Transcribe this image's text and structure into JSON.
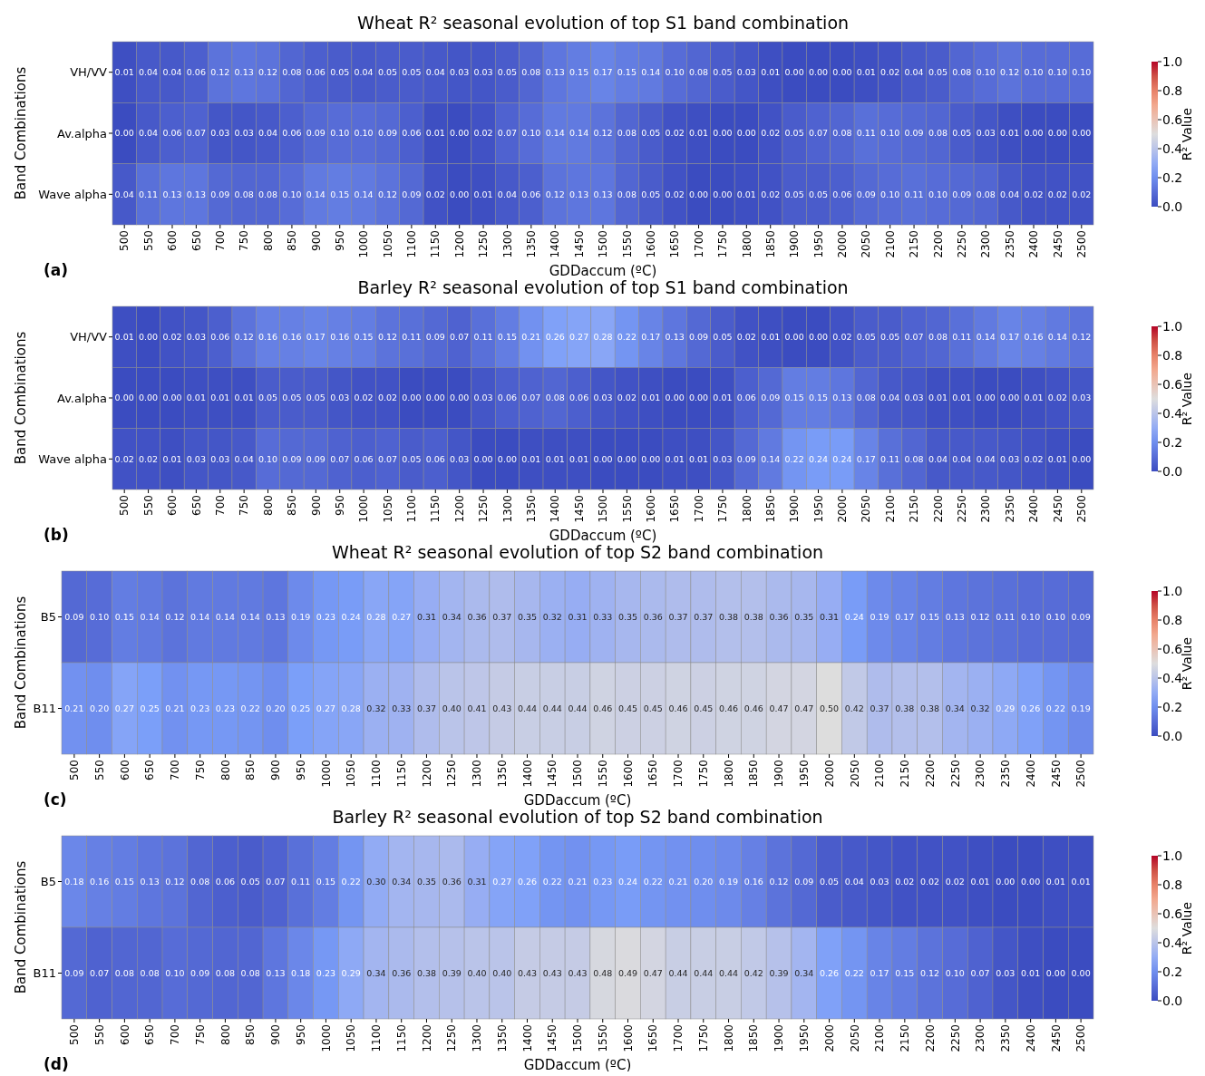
{
  "chart_data": [
    {
      "type": "heatmap",
      "title": "Wheat R² seasonal evolution of top S1 band combination",
      "xlabel": "GDDaccum (ºC)",
      "ylabel": "Band Combinations",
      "clabel": "R² Value",
      "annotations": [
        "(a)"
      ],
      "categories": [
        "500",
        "550",
        "600",
        "650",
        "700",
        "750",
        "800",
        "850",
        "900",
        "950",
        "1000",
        "1050",
        "1100",
        "1150",
        "1200",
        "1250",
        "1300",
        "1350",
        "1400",
        "1450",
        "1500",
        "1550",
        "1600",
        "1650",
        "1700",
        "1750",
        "1800",
        "1850",
        "1900",
        "1950",
        "2000",
        "2050",
        "2100",
        "2150",
        "2200",
        "2250",
        "2300",
        "2350",
        "2400",
        "2450",
        "2500"
      ],
      "y_categories": [
        "VH/VV",
        "Av.alpha",
        "Wave alpha"
      ],
      "cells": [
        [
          0.01,
          0.04,
          0.04,
          0.06,
          0.12,
          0.13,
          0.12,
          0.08,
          0.06,
          0.05,
          0.04,
          0.05,
          0.05,
          0.04,
          0.03,
          0.03,
          0.05,
          0.08,
          0.13,
          0.15,
          0.17,
          0.15,
          0.14,
          0.1,
          0.08,
          0.05,
          0.03,
          0.01,
          0.0,
          0.0,
          0.0,
          0.01,
          0.02,
          0.04,
          0.05,
          0.08,
          0.1,
          0.12,
          0.1,
          0.1,
          0.1
        ],
        [
          0.0,
          0.04,
          0.06,
          0.07,
          0.03,
          0.03,
          0.04,
          0.06,
          0.09,
          0.1,
          0.1,
          0.09,
          0.06,
          0.01,
          0.0,
          0.02,
          0.07,
          0.1,
          0.14,
          0.14,
          0.12,
          0.08,
          0.05,
          0.02,
          0.01,
          0.0,
          0.0,
          0.02,
          0.05,
          0.07,
          0.08,
          0.11,
          0.1,
          0.09,
          0.08,
          0.05,
          0.03,
          0.01,
          0.0,
          0.0,
          0.0
        ],
        [
          0.04,
          0.11,
          0.13,
          0.13,
          0.09,
          0.08,
          0.08,
          0.1,
          0.14,
          0.15,
          0.14,
          0.12,
          0.09,
          0.02,
          0.0,
          0.01,
          0.04,
          0.06,
          0.12,
          0.13,
          0.13,
          0.08,
          0.05,
          0.02,
          0.0,
          0.0,
          0.01,
          0.02,
          0.05,
          0.05,
          0.06,
          0.09,
          0.1,
          0.11,
          0.1,
          0.09,
          0.08,
          0.04,
          0.02,
          0.02,
          0.02
        ]
      ],
      "cell_labels": [
        [
          "0.01",
          "0.04",
          "0.04",
          "0.06",
          "0.12",
          "0.13",
          "0.12",
          "0.08",
          "0.06",
          "0.05",
          "0.04",
          "0.05",
          "0.05",
          "0.04",
          "0.03",
          "0.03",
          "0.05",
          "0.08",
          "0.13",
          "0.15",
          "0.17",
          "0.15",
          "0.14",
          "0.10",
          "0.08",
          "0.05",
          "0.03",
          "0.01",
          "0.00",
          "0.00",
          "0.00",
          "0.01",
          "0.02",
          "0.04",
          "0.05",
          "0.08",
          "0.10",
          "0.12",
          "0.10",
          "0.10",
          "0.10"
        ],
        [
          "0.00",
          "0.04",
          "0.06",
          "0.07",
          "0.03",
          "0.03",
          "0.04",
          "0.06",
          "0.09",
          "0.10",
          "0.10",
          "0.09",
          "0.06",
          "0.01",
          "0.00",
          "0.02",
          "0.07",
          "0.10",
          "0.14",
          "0.14",
          "0.12",
          "0.08",
          "0.05",
          "0.02",
          "0.01",
          "0.00",
          "0.00",
          "0.02",
          "0.05",
          "0.07",
          "0.08",
          "0.11",
          "0.10",
          "0.09",
          "0.08",
          "0.05",
          "0.03",
          "0.01",
          "0.00",
          "0.00",
          "0.00"
        ],
        [
          "0.04",
          "0.11",
          "0.13",
          "0.13",
          "0.09",
          "0.08",
          "0.08",
          "0.10",
          "0.14",
          "0.15",
          "0.14",
          "0.12",
          "0.09",
          "0.02",
          "0.00",
          "0.01",
          "0.04",
          "0.06",
          "0.12",
          "0.13",
          "0.13",
          "0.08",
          "0.05",
          "0.02",
          "0.00",
          "0.00",
          "0.01",
          "0.02",
          "0.05",
          "0.05",
          "0.06",
          "0.09",
          "0.10",
          "0.11",
          "0.10",
          "0.09",
          "0.08",
          "0.04",
          "0.02",
          "0.02",
          "0.02"
        ]
      ],
      "clim": [
        0,
        1
      ],
      "cticks": [
        {
          "value": 0,
          "label": "0.0"
        },
        {
          "value": 0.2,
          "label": "0.2"
        },
        {
          "value": 0.4,
          "label": "0.4"
        },
        {
          "value": 0.6,
          "label": "0.6"
        },
        {
          "value": 0.8,
          "label": "0.8"
        },
        {
          "value": 1,
          "label": "1.0"
        }
      ]
    },
    {
      "type": "heatmap",
      "title": "Barley R² seasonal evolution of top S1 band combination",
      "xlabel": "GDDaccum (ºC)",
      "ylabel": "Band Combinations",
      "clabel": "R² Value",
      "annotations": [
        "(b)"
      ],
      "categories": [
        "500",
        "550",
        "600",
        "650",
        "700",
        "750",
        "800",
        "850",
        "900",
        "950",
        "1000",
        "1050",
        "1100",
        "1150",
        "1200",
        "1250",
        "1300",
        "1350",
        "1400",
        "1450",
        "1500",
        "1550",
        "1600",
        "1650",
        "1700",
        "1750",
        "1800",
        "1850",
        "1900",
        "1950",
        "2000",
        "2050",
        "2100",
        "2150",
        "2200",
        "2250",
        "2300",
        "2350",
        "2400",
        "2450",
        "2500"
      ],
      "y_categories": [
        "VH/VV",
        "Av.alpha",
        "Wave alpha"
      ],
      "cells": [
        [
          0.01,
          0.0,
          0.02,
          0.03,
          0.06,
          0.12,
          0.16,
          0.16,
          0.17,
          0.16,
          0.15,
          0.12,
          0.11,
          0.09,
          0.07,
          0.11,
          0.15,
          0.21,
          0.26,
          0.27,
          0.28,
          0.22,
          0.17,
          0.13,
          0.09,
          0.05,
          0.02,
          0.01,
          0.0,
          0.0,
          0.02,
          0.05,
          0.05,
          0.07,
          0.08,
          0.11,
          0.14,
          0.17,
          0.16,
          0.14,
          0.12
        ],
        [
          0.0,
          0.0,
          0.0,
          0.01,
          0.01,
          0.01,
          0.05,
          0.05,
          0.05,
          0.03,
          0.02,
          0.02,
          0.0,
          0.0,
          0.0,
          0.03,
          0.06,
          0.07,
          0.08,
          0.06,
          0.03,
          0.02,
          0.01,
          0.0,
          0.0,
          0.01,
          0.06,
          0.09,
          0.15,
          0.15,
          0.13,
          0.08,
          0.04,
          0.03,
          0.01,
          0.01,
          0.0,
          0.0,
          0.01,
          0.02,
          0.03
        ],
        [
          0.02,
          0.02,
          0.01,
          0.03,
          0.03,
          0.04,
          0.1,
          0.09,
          0.09,
          0.07,
          0.06,
          0.07,
          0.05,
          0.06,
          0.03,
          0.0,
          0.0,
          0.01,
          0.01,
          0.01,
          0.0,
          0.0,
          0.0,
          0.01,
          0.01,
          0.03,
          0.09,
          0.14,
          0.22,
          0.24,
          0.24,
          0.17,
          0.11,
          0.08,
          0.04,
          0.04,
          0.04,
          0.03,
          0.02,
          0.01,
          0.0
        ]
      ],
      "cell_labels": [
        [
          "0.01",
          "0.00",
          "0.02",
          "0.03",
          "0.06",
          "0.12",
          "0.16",
          "0.16",
          "0.17",
          "0.16",
          "0.15",
          "0.12",
          "0.11",
          "0.09",
          "0.07",
          "0.11",
          "0.15",
          "0.21",
          "0.26",
          "0.27",
          "0.28",
          "0.22",
          "0.17",
          "0.13",
          "0.09",
          "0.05",
          "0.02",
          "0.01",
          "0.00",
          "0.00",
          "0.02",
          "0.05",
          "0.05",
          "0.07",
          "0.08",
          "0.11",
          "0.14",
          "0.17",
          "0.16",
          "0.14",
          "0.12"
        ],
        [
          "0.00",
          "0.00",
          "0.00",
          "0.01",
          "0.01",
          "0.01",
          "0.05",
          "0.05",
          "0.05",
          "0.03",
          "0.02",
          "0.02",
          "0.00",
          "0.00",
          "0.00",
          "0.03",
          "0.06",
          "0.07",
          "0.08",
          "0.06",
          "0.03",
          "0.02",
          "0.01",
          "0.00",
          "0.00",
          "0.01",
          "0.06",
          "0.09",
          "0.15",
          "0.15",
          "0.13",
          "0.08",
          "0.04",
          "0.03",
          "0.01",
          "0.01",
          "0.00",
          "0.00",
          "0.01",
          "0.02",
          "0.03"
        ],
        [
          "0.02",
          "0.02",
          "0.01",
          "0.03",
          "0.03",
          "0.04",
          "0.10",
          "0.09",
          "0.09",
          "0.07",
          "0.06",
          "0.07",
          "0.05",
          "0.06",
          "0.03",
          "0.00",
          "0.00",
          "0.01",
          "0.01",
          "0.01",
          "0.00",
          "0.00",
          "0.00",
          "0.01",
          "0.01",
          "0.03",
          "0.09",
          "0.14",
          "0.22",
          "0.24",
          "0.24",
          "0.17",
          "0.11",
          "0.08",
          "0.04",
          "0.04",
          "0.04",
          "0.03",
          "0.02",
          "0.01",
          "0.00"
        ]
      ],
      "clim": [
        0,
        1
      ],
      "cticks": [
        {
          "value": 0,
          "label": "0.0"
        },
        {
          "value": 0.2,
          "label": "0.2"
        },
        {
          "value": 0.4,
          "label": "0.4"
        },
        {
          "value": 0.6,
          "label": "0.6"
        },
        {
          "value": 0.8,
          "label": "0.8"
        },
        {
          "value": 1,
          "label": "1.0"
        }
      ]
    },
    {
      "type": "heatmap",
      "title": "Wheat R² seasonal evolution of top S2 band combination",
      "xlabel": "GDDaccum (ºC)",
      "ylabel": "Band Combinations",
      "clabel": "R² Value",
      "annotations": [
        "(c)"
      ],
      "categories": [
        "500",
        "550",
        "600",
        "650",
        "700",
        "750",
        "800",
        "850",
        "900",
        "950",
        "1000",
        "1050",
        "1100",
        "1150",
        "1200",
        "1250",
        "1300",
        "1350",
        "1400",
        "1450",
        "1500",
        "1550",
        "1600",
        "1650",
        "1700",
        "1750",
        "1800",
        "1850",
        "1900",
        "1950",
        "2000",
        "2050",
        "2100",
        "2150",
        "2200",
        "2250",
        "2300",
        "2350",
        "2400",
        "2450",
        "2500"
      ],
      "y_categories": [
        "B5",
        "B11"
      ],
      "cells": [
        [
          0.09,
          0.1,
          0.15,
          0.14,
          0.12,
          0.14,
          0.14,
          0.14,
          0.13,
          0.19,
          0.23,
          0.24,
          0.28,
          0.27,
          0.31,
          0.34,
          0.36,
          0.37,
          0.35,
          0.32,
          0.31,
          0.33,
          0.35,
          0.36,
          0.37,
          0.37,
          0.38,
          0.38,
          0.36,
          0.35,
          0.31,
          0.24,
          0.19,
          0.17,
          0.15,
          0.13,
          0.12,
          0.11,
          0.1,
          0.1,
          0.09
        ],
        [
          0.21,
          0.2,
          0.27,
          0.25,
          0.21,
          0.23,
          0.23,
          0.22,
          0.2,
          0.25,
          0.27,
          0.28,
          0.32,
          0.33,
          0.37,
          0.4,
          0.41,
          0.43,
          0.44,
          0.44,
          0.44,
          0.46,
          0.45,
          0.45,
          0.46,
          0.45,
          0.46,
          0.46,
          0.47,
          0.47,
          0.5,
          0.42,
          0.37,
          0.38,
          0.38,
          0.34,
          0.32,
          0.29,
          0.26,
          0.22,
          0.19
        ]
      ],
      "cell_labels": [
        [
          "0.09",
          "0.10",
          "0.15",
          "0.14",
          "0.12",
          "0.14",
          "0.14",
          "0.14",
          "0.13",
          "0.19",
          "0.23",
          "0.24",
          "0.28",
          "0.27",
          "0.31",
          "0.34",
          "0.36",
          "0.37",
          "0.35",
          "0.32",
          "0.31",
          "0.33",
          "0.35",
          "0.36",
          "0.37",
          "0.37",
          "0.38",
          "0.38",
          "0.36",
          "0.35",
          "0.31",
          "0.24",
          "0.19",
          "0.17",
          "0.15",
          "0.13",
          "0.12",
          "0.11",
          "0.10",
          "0.10",
          "0.09"
        ],
        [
          "0.21",
          "0.20",
          "0.27",
          "0.25",
          "0.21",
          "0.23",
          "0.23",
          "0.22",
          "0.20",
          "0.25",
          "0.27",
          "0.28",
          "0.32",
          "0.33",
          "0.37",
          "0.40",
          "0.41",
          "0.43",
          "0.44",
          "0.44",
          "0.44",
          "0.46",
          "0.45",
          "0.45",
          "0.46",
          "0.45",
          "0.46",
          "0.46",
          "0.47",
          "0.47",
          "0.50",
          "0.42",
          "0.37",
          "0.38",
          "0.38",
          "0.34",
          "0.32",
          "0.29",
          "0.26",
          "0.22",
          "0.19"
        ]
      ],
      "clim": [
        0,
        1
      ],
      "cticks": [
        {
          "value": 0,
          "label": "0.0"
        },
        {
          "value": 0.2,
          "label": "0.2"
        },
        {
          "value": 0.4,
          "label": "0.4"
        },
        {
          "value": 0.6,
          "label": "0.6"
        },
        {
          "value": 0.8,
          "label": "0.8"
        },
        {
          "value": 1,
          "label": "1.0"
        }
      ]
    },
    {
      "type": "heatmap",
      "title": "Barley R² seasonal evolution of top S2 band combination",
      "xlabel": "GDDaccum (ºC)",
      "ylabel": "Band Combinations",
      "clabel": "R² Value",
      "annotations": [
        "(d)"
      ],
      "categories": [
        "500",
        "550",
        "600",
        "650",
        "700",
        "750",
        "800",
        "850",
        "900",
        "950",
        "1000",
        "1050",
        "1100",
        "1150",
        "1200",
        "1250",
        "1300",
        "1350",
        "1400",
        "1450",
        "1500",
        "1550",
        "1600",
        "1650",
        "1700",
        "1750",
        "1800",
        "1850",
        "1900",
        "1950",
        "2000",
        "2050",
        "2100",
        "2150",
        "2200",
        "2250",
        "2300",
        "2350",
        "2400",
        "2450",
        "2500"
      ],
      "y_categories": [
        "B5",
        "B11"
      ],
      "cells": [
        [
          0.18,
          0.16,
          0.15,
          0.13,
          0.12,
          0.08,
          0.06,
          0.05,
          0.07,
          0.11,
          0.15,
          0.22,
          0.3,
          0.34,
          0.35,
          0.36,
          0.31,
          0.27,
          0.26,
          0.22,
          0.21,
          0.23,
          0.24,
          0.22,
          0.21,
          0.2,
          0.19,
          0.16,
          0.12,
          0.09,
          0.05,
          0.04,
          0.03,
          0.02,
          0.02,
          0.02,
          0.01,
          0.0,
          0.0,
          0.01,
          0.01
        ],
        [
          0.09,
          0.07,
          0.08,
          0.08,
          0.1,
          0.09,
          0.08,
          0.08,
          0.13,
          0.18,
          0.23,
          0.29,
          0.34,
          0.36,
          0.38,
          0.39,
          0.4,
          0.4,
          0.43,
          0.43,
          0.43,
          0.48,
          0.49,
          0.47,
          0.44,
          0.44,
          0.44,
          0.42,
          0.39,
          0.34,
          0.26,
          0.22,
          0.17,
          0.15,
          0.12,
          0.1,
          0.07,
          0.03,
          0.01,
          0.0,
          0.0
        ]
      ],
      "cell_labels": [
        [
          "0.18",
          "0.16",
          "0.15",
          "0.13",
          "0.12",
          "0.08",
          "0.06",
          "0.05",
          "0.07",
          "0.11",
          "0.15",
          "0.22",
          "0.30",
          "0.34",
          "0.35",
          "0.36",
          "0.31",
          "0.27",
          "0.26",
          "0.22",
          "0.21",
          "0.23",
          "0.24",
          "0.22",
          "0.21",
          "0.20",
          "0.19",
          "0.16",
          "0.12",
          "0.09",
          "0.05",
          "0.04",
          "0.03",
          "0.02",
          "0.02",
          "0.02",
          "0.01",
          "0.00",
          "0.00",
          "0.01",
          "0.01"
        ],
        [
          "0.09",
          "0.07",
          "0.08",
          "0.08",
          "0.10",
          "0.09",
          "0.08",
          "0.08",
          "0.13",
          "0.18",
          "0.23",
          "0.29",
          "0.34",
          "0.36",
          "0.38",
          "0.39",
          "0.40",
          "0.40",
          "0.43",
          "0.43",
          "0.43",
          "0.48",
          "0.49",
          "0.47",
          "0.44",
          "0.44",
          "0.44",
          "0.42",
          "0.39",
          "0.34",
          "0.26",
          "0.22",
          "0.17",
          "0.15",
          "0.12",
          "0.10",
          "0.07",
          "0.03",
          "0.01",
          "0.00",
          "0.00"
        ]
      ],
      "clim": [
        0,
        1
      ],
      "cticks": [
        {
          "value": 0,
          "label": "0.0"
        },
        {
          "value": 0.2,
          "label": "0.2"
        },
        {
          "value": 0.4,
          "label": "0.4"
        },
        {
          "value": 0.6,
          "label": "0.6"
        },
        {
          "value": 0.8,
          "label": "0.8"
        },
        {
          "value": 1,
          "label": "1.0"
        }
      ]
    }
  ]
}
